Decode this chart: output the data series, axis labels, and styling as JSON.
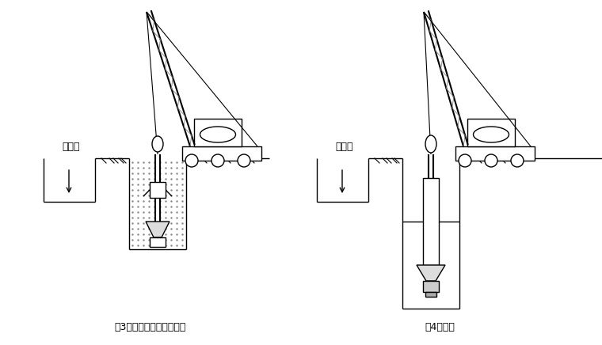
{
  "bg_color": "#ffffff",
  "label3": "（3）钻机就位、泥浆制备",
  "label4": "（4）钻进",
  "mud_pool_label1": "泥浆池",
  "mud_pool_label2": "泥浆池",
  "caption_fontsize": 9
}
